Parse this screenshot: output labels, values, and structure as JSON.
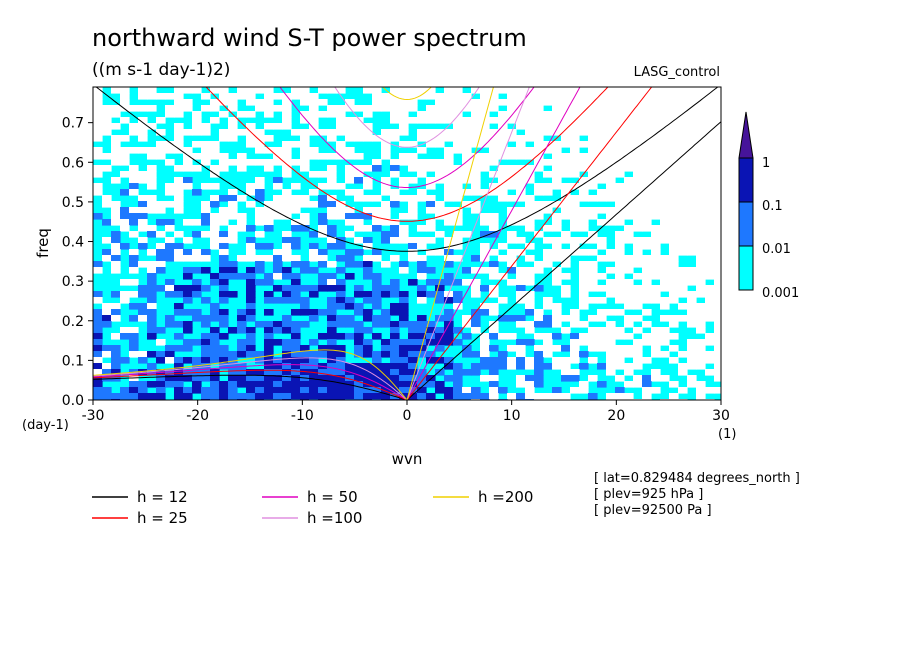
{
  "chart_data": {
    "type": "heatmap",
    "title": "northward wind S-T power spectrum",
    "subtitle": "((m s-1 day-1)2)",
    "run_label": "LASG_control",
    "xlabel": "wvn",
    "ylabel": "freq",
    "x_unit_label": "(1)",
    "y_unit_label": "(day-1)",
    "xlim": [
      -30,
      30
    ],
    "ylim": [
      0,
      0.8
    ],
    "x_ticks": [
      "-30",
      "-20",
      "-10",
      "0",
      "10",
      "20",
      "30"
    ],
    "y_ticks": [
      "0.0",
      "0.1",
      "0.2",
      "0.3",
      "0.4",
      "0.5",
      "0.6",
      "0.7"
    ],
    "x_tick_values": [
      -30,
      -20,
      -10,
      0,
      10,
      20,
      30
    ],
    "y_tick_values": [
      0,
      0.1,
      0.2,
      0.3,
      0.4,
      0.5,
      0.6,
      0.7
    ],
    "colorbar": {
      "levels": [
        "0.001",
        "0.01",
        "0.1",
        "1"
      ],
      "colors": [
        "#00ffff",
        "#1e78ff",
        "#0a14b4",
        "#46149a"
      ]
    },
    "series": [
      {
        "name": "h = 12",
        "color": "#000000"
      },
      {
        "name": "h = 25",
        "color": "#ff0000"
      },
      {
        "name": "h = 50",
        "color": "#e000c0"
      },
      {
        "name": "h =100",
        "color": "#e090e0"
      },
      {
        "name": "h =200",
        "color": "#f0d000"
      }
    ],
    "annotations": [
      "[ lat=0.829484 degrees_north ]",
      "[ plev=925 hPa ]",
      "[ plev=92500 Pa ]"
    ]
  }
}
